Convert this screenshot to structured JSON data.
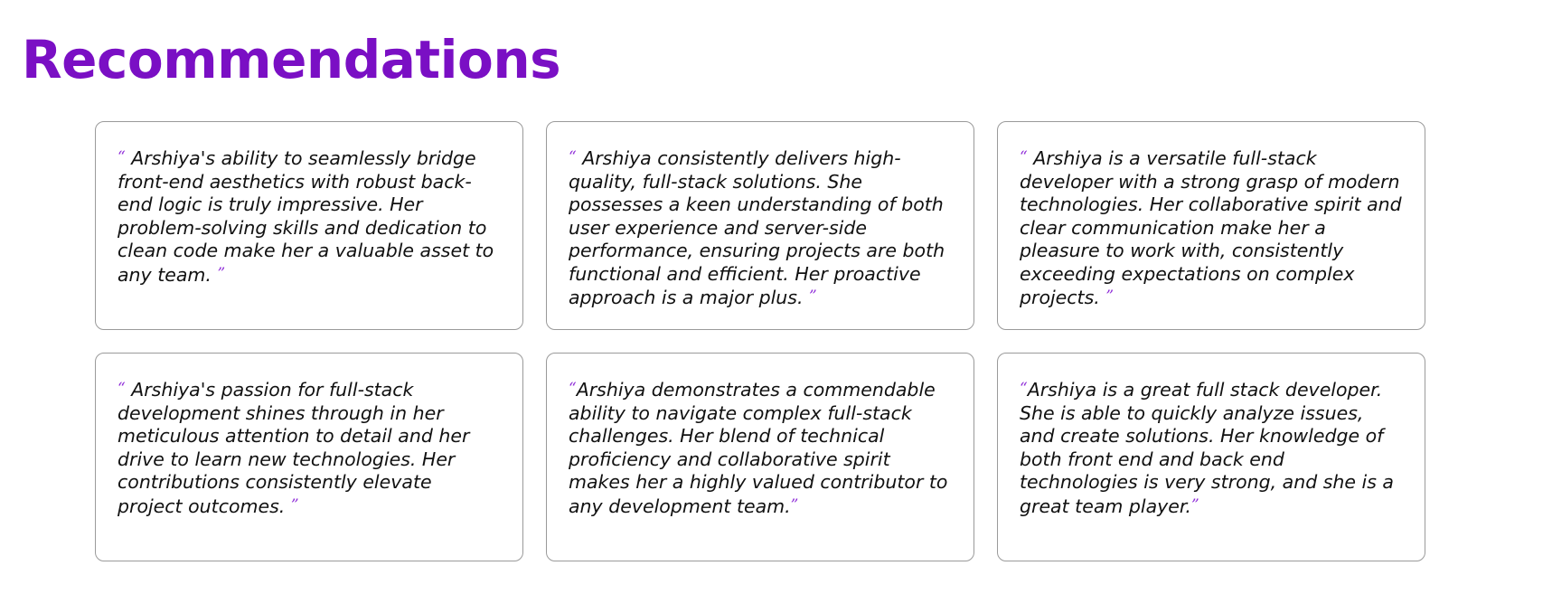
{
  "page": {
    "title": "Recommendations"
  },
  "quote_marks": {
    "open": "“",
    "close": "”"
  },
  "colors": {
    "title": "#7a0fc4",
    "quote_marks": "#8e2bd8",
    "card_border": "#9a9a9a",
    "text": "#111111"
  },
  "recommendations": [
    {
      "text": "Arshiya's ability to seamlessly bridge front-end aesthetics with robust back-end logic is truly impressive. Her problem-solving skills and dedication to clean code make her a valuable asset to any team."
    },
    {
      "text": "Arshiya consistently delivers high-quality, full-stack solutions. She possesses a keen understanding of both user experience and server-side performance, ensuring projects are both functional and efficient. Her proactive approach is a major plus."
    },
    {
      "text": "Arshiya is a versatile full-stack developer with a strong grasp of modern technologies. Her collaborative spirit and clear communication make her a pleasure to work with, consistently exceeding expectations on complex projects."
    },
    {
      "text": "Arshiya's passion for full-stack development shines through in her meticulous attention to detail and her drive to learn new technologies. Her contributions consistently elevate project outcomes."
    },
    {
      "text": "Arshiya demonstrates a commendable ability to navigate complex full-stack challenges. Her blend of technical proficiency and collaborative spirit makes her a highly valued contributor to any development team."
    },
    {
      "text": "Arshiya is a great full stack developer. She is able to quickly analyze issues, and create solutions. Her knowledge of both front end and back end technologies is very strong, and she is a great team player."
    }
  ]
}
